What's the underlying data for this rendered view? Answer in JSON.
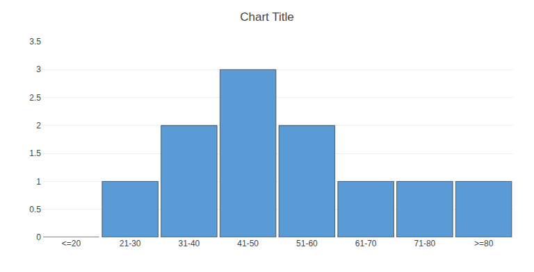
{
  "chart_data": {
    "type": "bar",
    "title": "Chart Title",
    "categories": [
      "<=20",
      "21-30",
      "31-40",
      "41-50",
      "51-60",
      "61-70",
      "71-80",
      ">=80"
    ],
    "values": [
      0,
      1,
      2,
      3,
      2,
      1,
      1,
      1
    ],
    "color": "#5B9BD5",
    "ylim": [
      0,
      3.5
    ],
    "yticks": [
      0,
      0.5,
      1,
      1.5,
      2,
      2.5,
      3,
      3.5
    ],
    "grid": true
  }
}
